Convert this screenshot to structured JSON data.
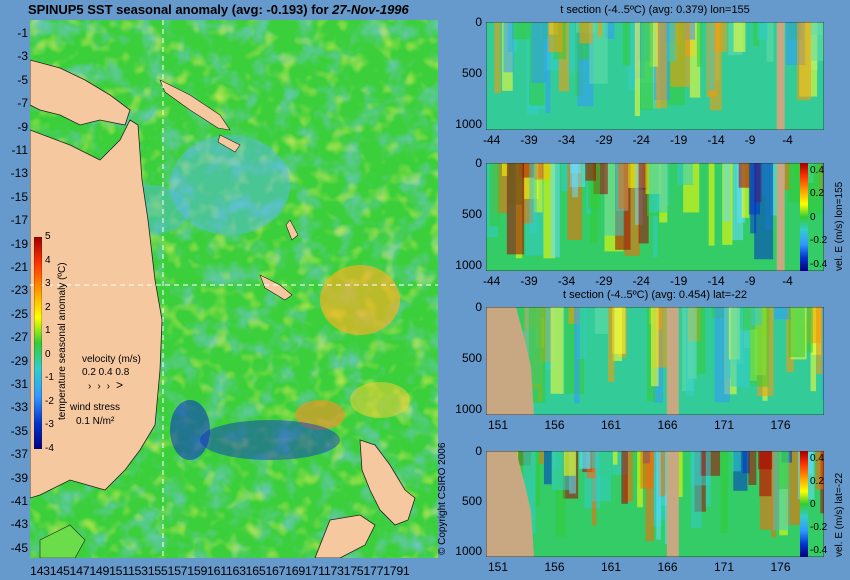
{
  "map": {
    "title_prefix": "SPINUP5 SST seasonal anomaly (avg: -0.193) for ",
    "title_date": "27-Nov-1996",
    "y_ticks": [
      "-1",
      "-3",
      "-5",
      "-7",
      "-9",
      "-11",
      "-13",
      "-15",
      "-17",
      "-19",
      "-21",
      "-23",
      "-25",
      "-27",
      "-29",
      "-31",
      "-33",
      "-35",
      "-37",
      "-39",
      "-41",
      "-43",
      "-45"
    ],
    "x_ticks_text": "1431451471491511531551571591611631651671691711731751771791",
    "colorbar_label": "temperature seasonal anomaly (ºC)",
    "colorbar_ticks": [
      "5",
      "4",
      "3",
      "2",
      "1",
      "0",
      "-1",
      "-2",
      "-3",
      "-4"
    ],
    "velocity_label": "velocity (m/s)",
    "velocity_values": "0.2 0.4 0.8",
    "wind_label": "wind stress",
    "wind_value": "0.1 N/m²",
    "copyright": "© Copyright CSIRO 2006",
    "colors": {
      "land": "#f5c8a0",
      "ocean_green": "#33cc33",
      "background": "#6699cc"
    }
  },
  "panels": [
    {
      "id": "t-lon",
      "title": "t section (-4..5ºC) (avg: 0.379) lon=155",
      "y_ticks": [
        "0",
        "500",
        "1000"
      ],
      "x_ticks": [
        "-44",
        "-39",
        "-34",
        "-29",
        "-24",
        "-19",
        "-14",
        "-9",
        "-4"
      ],
      "right_label": ""
    },
    {
      "id": "u-lon",
      "title": "",
      "y_ticks": [
        "0",
        "500",
        "1000"
      ],
      "x_ticks": [
        "-44",
        "-39",
        "-34",
        "-29",
        "-24",
        "-19",
        "-14",
        "-9",
        "-4"
      ],
      "right_label": "vel. E (m/s) lon=155",
      "cb_ticks": [
        "0.4",
        "0.2",
        "0",
        "-0.2",
        "-0.4"
      ]
    },
    {
      "id": "t-lat",
      "title": "t section (-4..5ºC) (avg: 0.454) lat=-22",
      "y_ticks": [
        "0",
        "500",
        "1000"
      ],
      "x_ticks": [
        "151",
        "156",
        "161",
        "166",
        "171",
        "176"
      ],
      "right_label": ""
    },
    {
      "id": "u-lat",
      "title": "",
      "y_ticks": [
        "0",
        "500",
        "1000"
      ],
      "x_ticks": [
        "151",
        "156",
        "161",
        "166",
        "171",
        "176"
      ],
      "right_label": "vel. E (m/s) lat=-22",
      "cb_ticks": [
        "0.4",
        "0.2",
        "0",
        "-0.2",
        "-0.4"
      ]
    }
  ],
  "chart_data": [
    {
      "type": "heatmap",
      "title": "SPINUP5 SST seasonal anomaly (avg: -0.193) for 27-Nov-1996",
      "xlabel": "",
      "ylabel": "",
      "xlim": [
        143,
        180
      ],
      "ylim": [
        -45,
        0
      ],
      "colorbar_range": [
        -4,
        5
      ]
    },
    {
      "type": "heatmap",
      "title": "t section (-4..5ºC) (avg: 0.379) lon=155",
      "xlim": [
        -45,
        -1
      ],
      "ylim": [
        1050,
        0
      ],
      "y_ticks": [
        0,
        500,
        1000
      ]
    },
    {
      "type": "heatmap",
      "title": "",
      "ylabel": "vel. E (m/s) lon=155",
      "xlim": [
        -45,
        -1
      ],
      "ylim": [
        1050,
        0
      ],
      "colorbar_range": [
        -0.4,
        0.4
      ]
    },
    {
      "type": "heatmap",
      "title": "t section (-4..5ºC) (avg: 0.454) lat=-22",
      "xlim": [
        150,
        180
      ],
      "ylim": [
        1050,
        0
      ]
    },
    {
      "type": "heatmap",
      "title": "",
      "ylabel": "vel. E (m/s) lat=-22",
      "xlim": [
        150,
        180
      ],
      "ylim": [
        1050,
        0
      ],
      "colorbar_range": [
        -0.4,
        0.4
      ]
    }
  ]
}
